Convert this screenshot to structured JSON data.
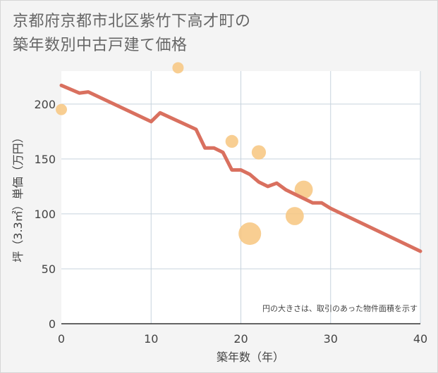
{
  "title_line1": "京都府京都市北区紫竹下高才町の",
  "title_line2": "築年数別中古戸建て価格",
  "chart_data": {
    "type": "line+scatter",
    "xlabel": "築年数（年）",
    "ylabel": "坪（3.3㎡）単価（万円）",
    "xlim": [
      0,
      40
    ],
    "ylim": [
      0,
      230
    ],
    "xticks": [
      0,
      10,
      20,
      30,
      40
    ],
    "yticks": [
      0,
      50,
      100,
      150,
      200
    ],
    "grid": true,
    "note": "円の大きさは、取引のあった物件面積を示す",
    "colors": {
      "line": "#d9705f",
      "bubble": "#f7c67f",
      "grid": "#c7d3dd",
      "plot_bg": "#ffffff"
    },
    "line": {
      "x": [
        0,
        2,
        3,
        10,
        11,
        15,
        16,
        17,
        18,
        19,
        20,
        21,
        22,
        23,
        24,
        25,
        28,
        29,
        30,
        40
      ],
      "y": [
        217,
        210,
        211,
        184,
        192,
        177,
        160,
        160,
        156,
        140,
        140,
        136,
        129,
        125,
        128,
        122,
        110,
        110,
        105,
        66
      ]
    },
    "bubbles": [
      {
        "x": 0,
        "y": 195,
        "size": 1
      },
      {
        "x": 13,
        "y": 233,
        "size": 1
      },
      {
        "x": 19,
        "y": 166,
        "size": 1.3
      },
      {
        "x": 22,
        "y": 156,
        "size": 1.6
      },
      {
        "x": 21,
        "y": 82,
        "size": 4
      },
      {
        "x": 26,
        "y": 98,
        "size": 2.6
      },
      {
        "x": 27,
        "y": 122,
        "size": 2.6
      }
    ]
  }
}
